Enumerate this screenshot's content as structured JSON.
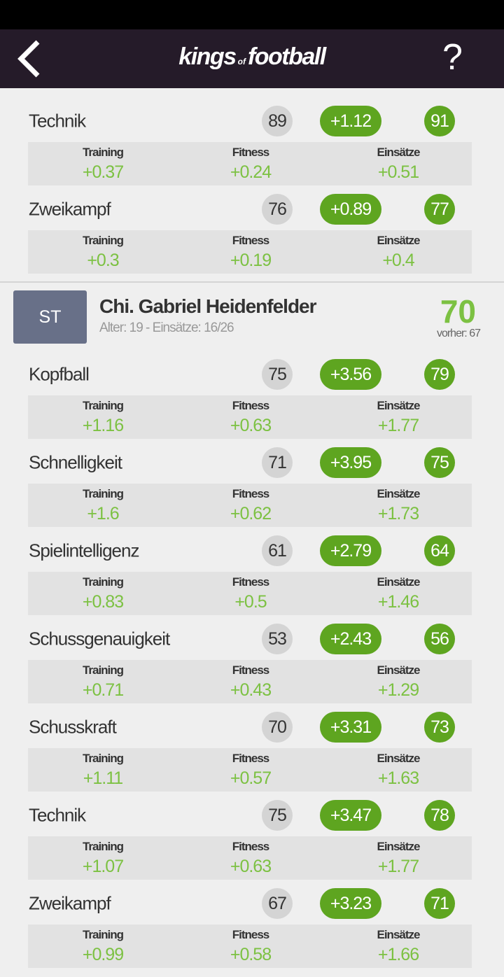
{
  "header": {
    "logo": [
      "kings",
      "of",
      "football"
    ],
    "help": "?"
  },
  "sections": [
    {
      "attributes": [
        {
          "name": "Technik",
          "old": "89",
          "gain": "+1.12",
          "new": "91",
          "breakdown": [
            {
              "label": "Training",
              "value": "+0.37"
            },
            {
              "label": "Fitness",
              "value": "+0.24"
            },
            {
              "label": "Einsätze",
              "value": "+0.51"
            }
          ]
        },
        {
          "name": "Zweikampf",
          "old": "76",
          "gain": "+0.89",
          "new": "77",
          "breakdown": [
            {
              "label": "Training",
              "value": "+0.3"
            },
            {
              "label": "Fitness",
              "value": "+0.19"
            },
            {
              "label": "Einsätze",
              "value": "+0.4"
            }
          ]
        }
      ]
    },
    {
      "player": {
        "position": "ST",
        "name": "Chi. Gabriel Heidenfelder",
        "info": "Alter: 19 - Einsätze: 16/26",
        "rating": "70",
        "previous": "vorher: 67"
      },
      "attributes": [
        {
          "name": "Kopfball",
          "old": "75",
          "gain": "+3.56",
          "new": "79",
          "breakdown": [
            {
              "label": "Training",
              "value": "+1.16"
            },
            {
              "label": "Fitness",
              "value": "+0.63"
            },
            {
              "label": "Einsätze",
              "value": "+1.77"
            }
          ]
        },
        {
          "name": "Schnelligkeit",
          "old": "71",
          "gain": "+3.95",
          "new": "75",
          "breakdown": [
            {
              "label": "Training",
              "value": "+1.6"
            },
            {
              "label": "Fitness",
              "value": "+0.62"
            },
            {
              "label": "Einsätze",
              "value": "+1.73"
            }
          ]
        },
        {
          "name": "Spielintelligenz",
          "old": "61",
          "gain": "+2.79",
          "new": "64",
          "breakdown": [
            {
              "label": "Training",
              "value": "+0.83"
            },
            {
              "label": "Fitness",
              "value": "+0.5"
            },
            {
              "label": "Einsätze",
              "value": "+1.46"
            }
          ]
        },
        {
          "name": "Schussgenauigkeit",
          "old": "53",
          "gain": "+2.43",
          "new": "56",
          "breakdown": [
            {
              "label": "Training",
              "value": "+0.71"
            },
            {
              "label": "Fitness",
              "value": "+0.43"
            },
            {
              "label": "Einsätze",
              "value": "+1.29"
            }
          ]
        },
        {
          "name": "Schusskraft",
          "old": "70",
          "gain": "+3.31",
          "new": "73",
          "breakdown": [
            {
              "label": "Training",
              "value": "+1.11"
            },
            {
              "label": "Fitness",
              "value": "+0.57"
            },
            {
              "label": "Einsätze",
              "value": "+1.63"
            }
          ]
        },
        {
          "name": "Technik",
          "old": "75",
          "gain": "+3.47",
          "new": "78",
          "breakdown": [
            {
              "label": "Training",
              "value": "+1.07"
            },
            {
              "label": "Fitness",
              "value": "+0.63"
            },
            {
              "label": "Einsätze",
              "value": "+1.77"
            }
          ]
        },
        {
          "name": "Zweikampf",
          "old": "67",
          "gain": "+3.23",
          "new": "71",
          "breakdown": [
            {
              "label": "Training",
              "value": "+0.99"
            },
            {
              "label": "Fitness",
              "value": "+0.58"
            },
            {
              "label": "Einsätze",
              "value": "+1.66"
            }
          ]
        }
      ]
    }
  ]
}
